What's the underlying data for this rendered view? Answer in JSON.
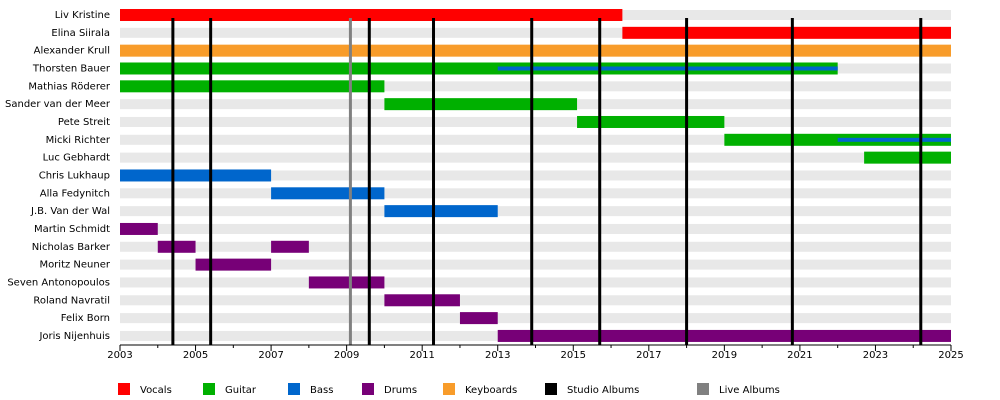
{
  "chart_data": {
    "type": "timeline",
    "categories": [
      "Liv Kristine",
      "Elina Siirala",
      "Alexander Krull",
      "Thorsten Bauer",
      "Mathias Röderer",
      "Sander van der Meer",
      "Pete Streit",
      "Micki Richter",
      "Luc Gebhardt",
      "Chris Lukhaup",
      "Alla Fedynitch",
      "J.B. Van der Wal",
      "Martin Schmidt",
      "Nicholas Barker",
      "Moritz Neuner",
      "Seven Antonopoulos",
      "Roland Navratil",
      "Felix Born",
      "Joris Nijenhuis"
    ],
    "series": [
      {
        "name": "Vocals",
        "color": "#ff0000",
        "values": [
          [
            [
              2003,
              2016.3
            ]
          ],
          [
            [
              2016.3,
              2025
            ]
          ],
          [],
          [],
          [],
          [],
          [],
          [],
          [],
          [],
          [],
          [],
          [],
          [],
          [],
          [],
          [],
          [],
          []
        ]
      },
      {
        "name": "Guitar",
        "color": "#00b000",
        "values": [
          [],
          [],
          [],
          [
            [
              2003,
              2022
            ]
          ],
          [
            [
              2003,
              2010
            ]
          ],
          [
            [
              2010,
              2015.1
            ]
          ],
          [
            [
              2015.1,
              2019
            ]
          ],
          [
            [
              2019,
              2025
            ]
          ],
          [
            [
              2022.7,
              2025
            ]
          ],
          [],
          [],
          [],
          [],
          [],
          [],
          [],
          [],
          [],
          []
        ]
      },
      {
        "name": "Bass",
        "color": "#0066cc",
        "values": [
          [],
          [],
          [],
          [
            [
              2013,
              2022
            ]
          ],
          [],
          [],
          [],
          [
            [
              2022,
              2025
            ]
          ],
          [],
          [
            [
              2003,
              2007
            ]
          ],
          [
            [
              2007,
              2010
            ]
          ],
          [
            [
              2010,
              2013
            ]
          ],
          [],
          [],
          [],
          [],
          [],
          [],
          []
        ]
      },
      {
        "name": "Drums",
        "color": "#770077",
        "values": [
          [],
          [],
          [],
          [],
          [],
          [],
          [],
          [],
          [],
          [],
          [],
          [],
          [
            [
              2003,
              2004
            ]
          ],
          [
            [
              2004,
              2005
            ],
            [
              2007,
              2008
            ]
          ],
          [
            [
              2005,
              2007
            ]
          ],
          [
            [
              2008,
              2010
            ]
          ],
          [
            [
              2010,
              2012
            ]
          ],
          [
            [
              2012,
              2013
            ]
          ],
          [
            [
              2013,
              2025
            ]
          ]
        ]
      },
      {
        "name": "Keyboards",
        "color": "#f89c2a",
        "values": [
          [],
          [],
          [
            [
              2003,
              2025
            ]
          ],
          [],
          [],
          [],
          [],
          [],
          [],
          [],
          [],
          [],
          [],
          [],
          [],
          [],
          [],
          [],
          []
        ]
      }
    ],
    "markers": [
      {
        "name": "Studio Albums",
        "color": "#000000",
        "values": [
          2004.4,
          2005.4,
          2009.6,
          2011.3,
          2013.9,
          2015.7,
          2018.0,
          2020.8,
          2024.2
        ]
      },
      {
        "name": "Live Albums",
        "color": "#808080",
        "values": [
          2009.1
        ]
      }
    ],
    "xlim": [
      2003,
      2025
    ],
    "xticks": [
      2003,
      2005,
      2007,
      2009,
      2011,
      2013,
      2015,
      2017,
      2019,
      2021,
      2023,
      2025
    ],
    "xminorticks": [
      2004,
      2006,
      2008,
      2010,
      2012,
      2014,
      2016,
      2018,
      2020,
      2022,
      2024
    ]
  }
}
